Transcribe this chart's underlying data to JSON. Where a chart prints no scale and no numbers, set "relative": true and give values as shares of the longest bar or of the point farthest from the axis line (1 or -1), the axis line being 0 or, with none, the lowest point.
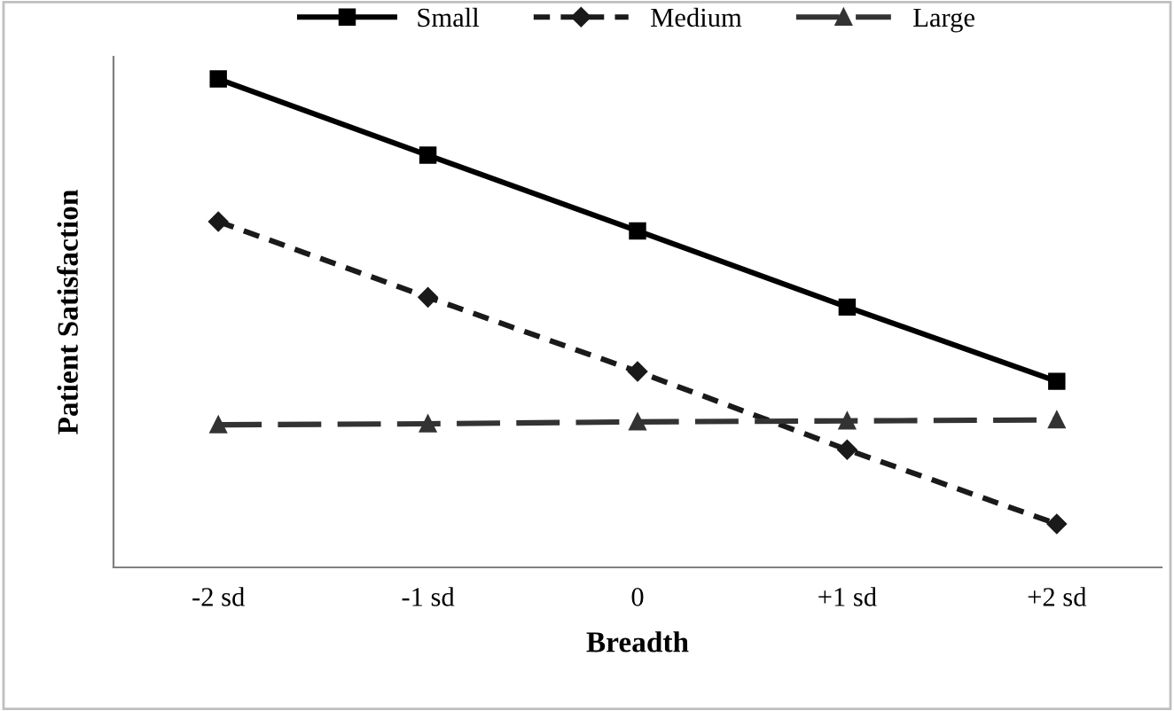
{
  "chart_data": {
    "type": "line",
    "xlabel": "Breadth",
    "ylabel": "Patient Satisfaction",
    "categories": [
      "-2 sd",
      "-1 sd",
      "0",
      "+1 sd",
      "+2 sd"
    ],
    "relative": true,
    "legend": "top",
    "grid": false,
    "series": [
      {
        "name": "Small",
        "color": "#000000",
        "marker": "square",
        "line_style": "solid",
        "values": [
          1,
          0.844,
          0.689,
          0.533,
          0.381
        ]
      },
      {
        "name": "Medium",
        "color": "#1a1a1a",
        "marker": "diamond",
        "line_style": "dashed",
        "values": [
          0.708,
          0.553,
          0.401,
          0.241,
          0.089
        ]
      },
      {
        "name": "Large",
        "color": "#333333",
        "marker": "triangle",
        "line_style": "longdash",
        "values": [
          0.292,
          0.294,
          0.298,
          0.3,
          0.302
        ]
      }
    ]
  }
}
